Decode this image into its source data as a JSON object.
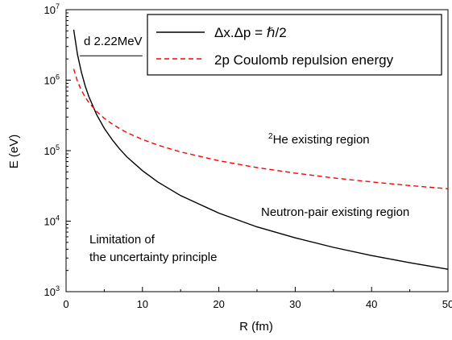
{
  "chart_data": {
    "type": "line",
    "xlabel": "R (fm)",
    "ylabel": "E (eV)",
    "xlim": [
      0,
      50
    ],
    "ylim": [
      1000,
      10000000
    ],
    "yscale": "log",
    "grid": false,
    "legend_placement": "top-right",
    "x_ticks": [
      0,
      10,
      20,
      30,
      40,
      50
    ],
    "x_tick_labels": [
      "0",
      "10",
      "20",
      "30",
      "40",
      "50"
    ],
    "y_ticks": [
      1000,
      10000,
      100000,
      1000000,
      10000000
    ],
    "y_tick_labels": [
      {
        "base": "10",
        "exp": "3"
      },
      {
        "base": "10",
        "exp": "4"
      },
      {
        "base": "10",
        "exp": "5"
      },
      {
        "base": "10",
        "exp": "6"
      },
      {
        "base": "10",
        "exp": "7"
      }
    ],
    "series": [
      {
        "name": "Δx.Δp = ℏ/2",
        "style": "solid",
        "color": "#000000",
        "x": [
          1,
          1.5,
          2,
          2.5,
          3,
          4,
          5,
          6,
          7,
          8,
          10,
          12,
          15,
          20,
          25,
          30,
          35,
          40,
          45,
          50
        ],
        "y": [
          5200000,
          2300000,
          1300000,
          830000,
          580000,
          325000,
          208000,
          145000,
          106000,
          81000,
          52000,
          36000,
          23000,
          13000,
          8300,
          5800,
          4250,
          3250,
          2570,
          2080
        ]
      },
      {
        "name": "2p Coulomb repulsion energy",
        "style": "dashed",
        "color": "#ff0000",
        "x": [
          1,
          1.5,
          2,
          2.5,
          3,
          4,
          5,
          6,
          7,
          8,
          10,
          12,
          15,
          20,
          25,
          30,
          35,
          40,
          45,
          50
        ],
        "y": [
          1440000,
          960000,
          720000,
          576000,
          480000,
          360000,
          288000,
          240000,
          206000,
          180000,
          144000,
          120000,
          96000,
          72000,
          57600,
          48000,
          41100,
          36000,
          32000,
          28800
        ]
      }
    ],
    "annotations": {
      "deuteron_label": "d 2.22MeV",
      "deuteron_line": {
        "x": [
          1.8,
          10
        ],
        "y": 2220000
      },
      "he_region": {
        "sup": "2",
        "text": "He existing region"
      },
      "neutron_region": "Neutron-pair existing region",
      "uncertainty_line1": "Limitation of",
      "uncertainty_line2": "the uncertainty principle"
    }
  }
}
